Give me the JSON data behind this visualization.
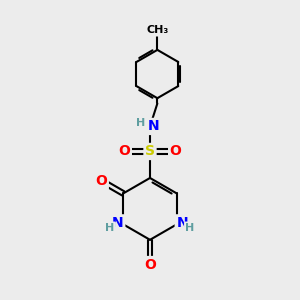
{
  "background_color": "#ececec",
  "bond_color": "#000000",
  "atom_colors": {
    "C": "#000000",
    "N": "#0000ff",
    "O": "#ff0000",
    "S": "#cccc00",
    "H": "#5f9ea0"
  },
  "font_size_atoms": 10,
  "font_size_small": 8,
  "figsize": [
    3.0,
    3.0
  ],
  "dpi": 100
}
